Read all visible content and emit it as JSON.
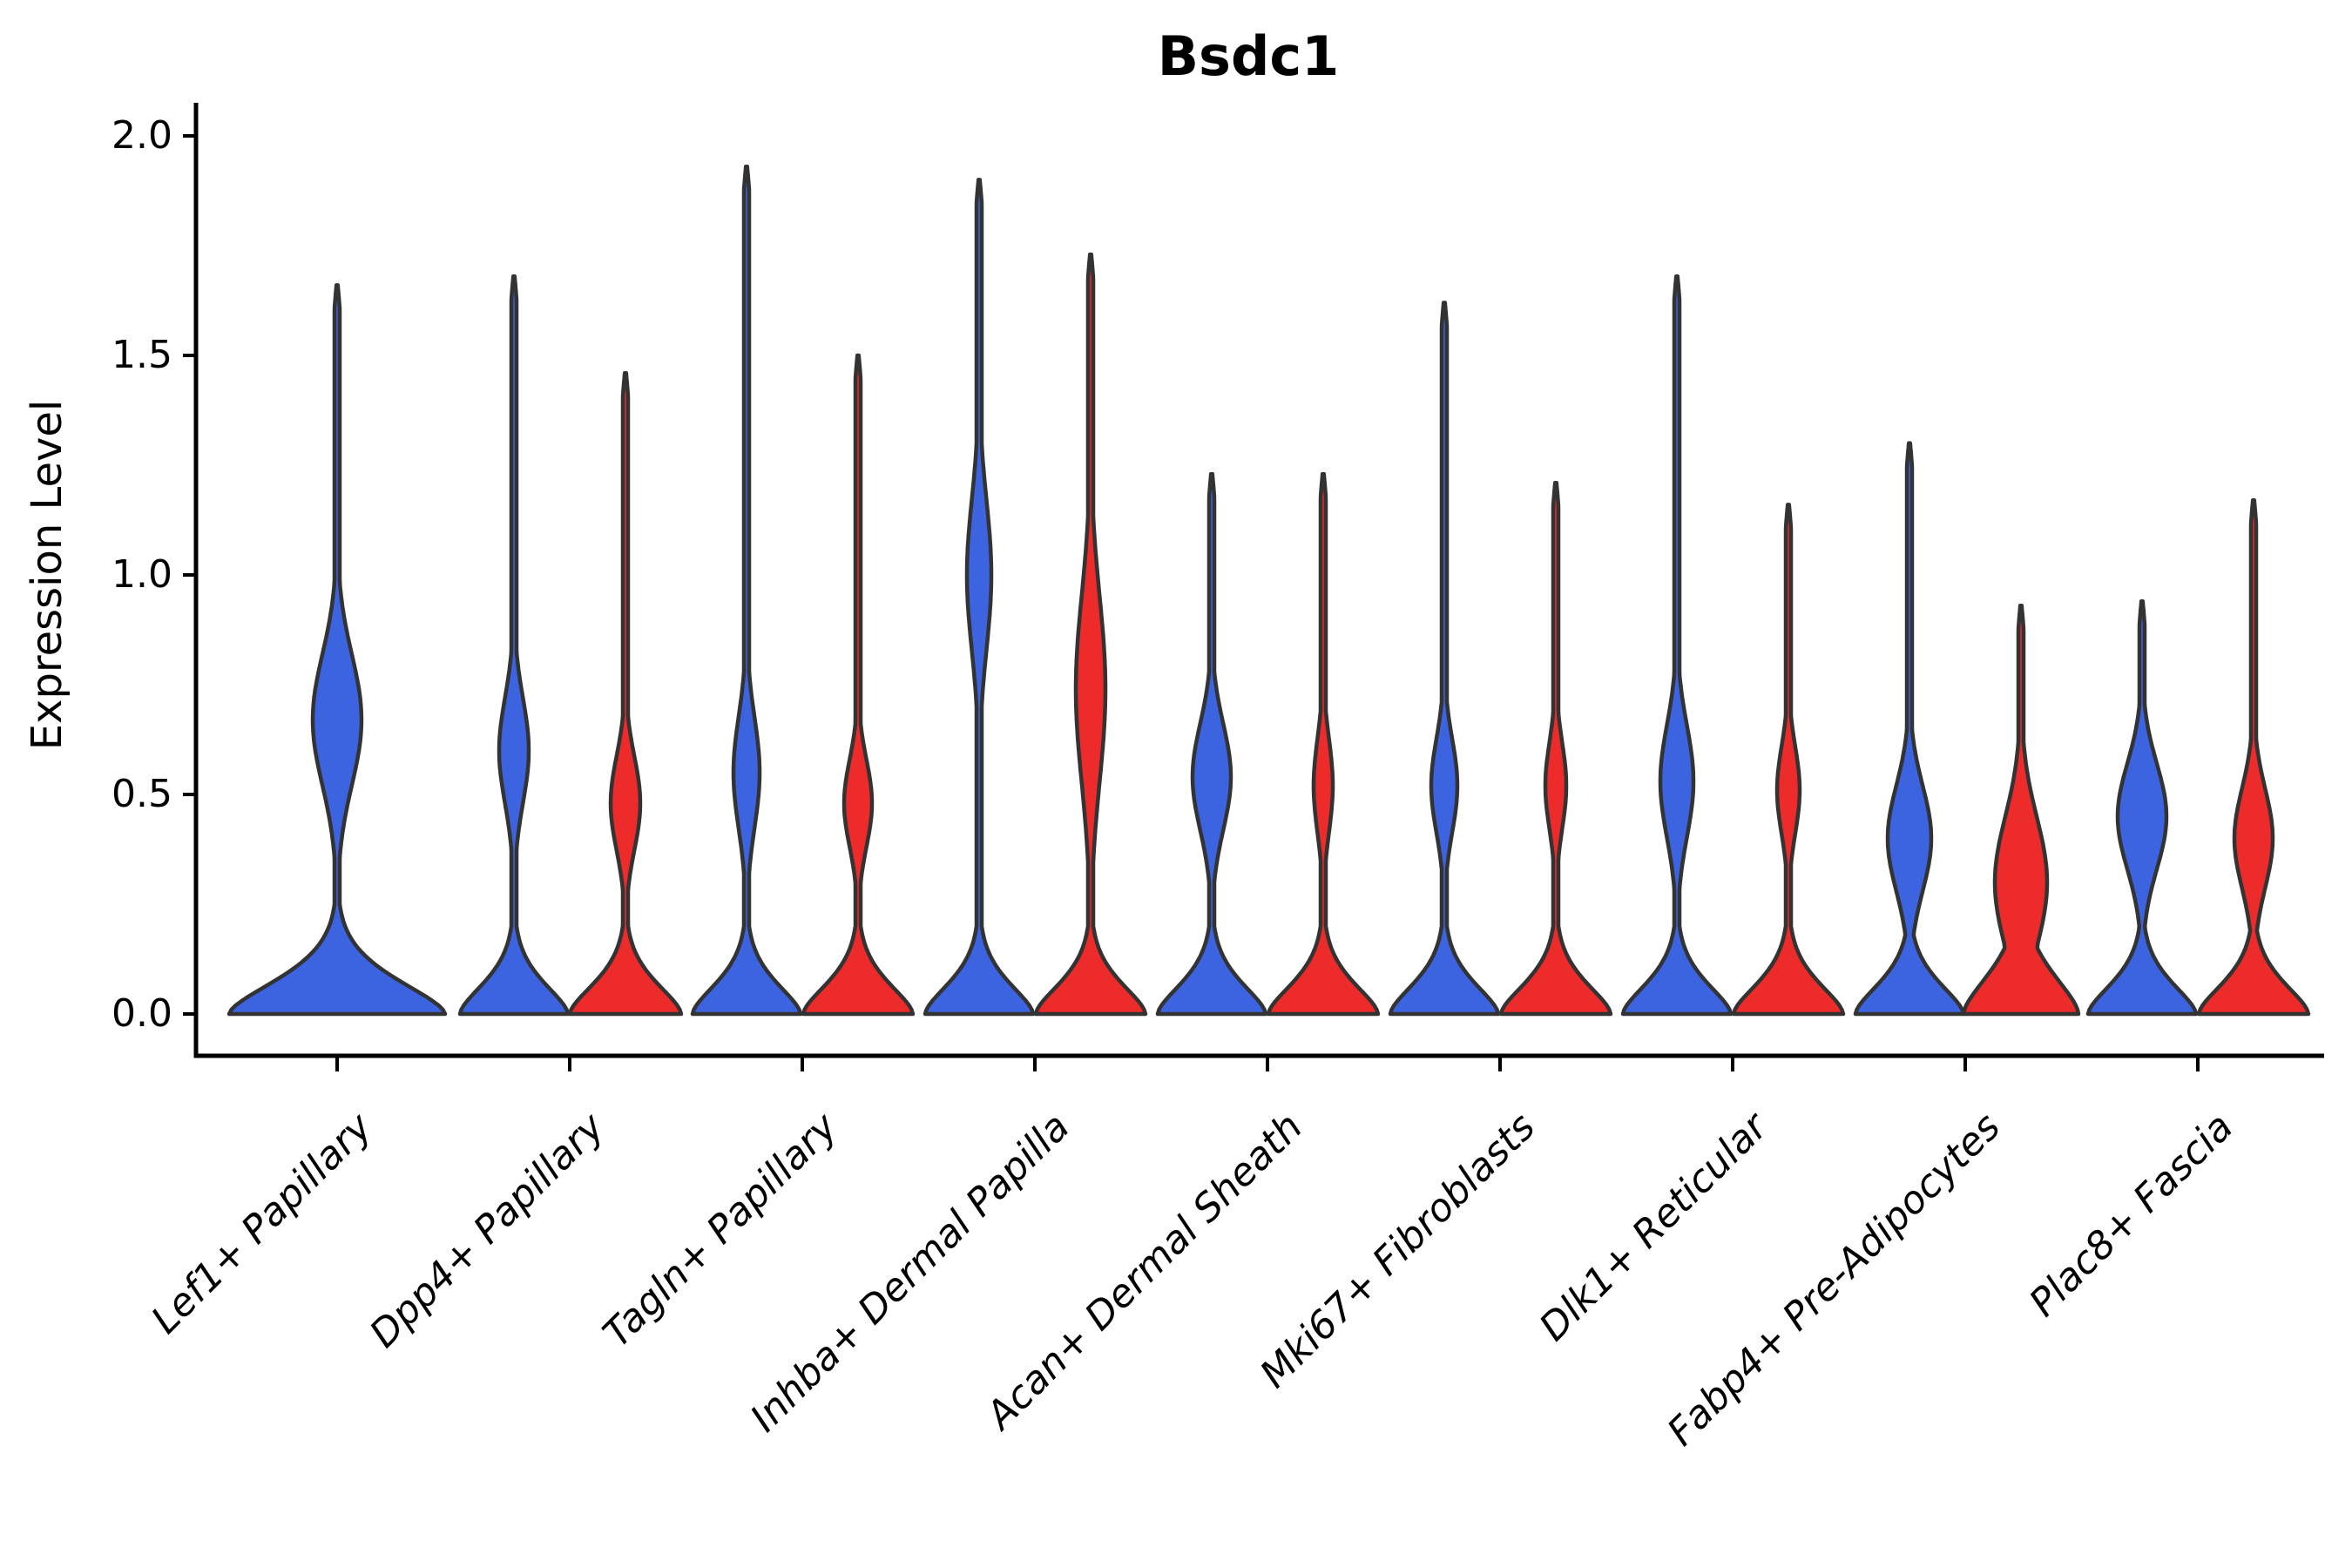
{
  "chart_data": {
    "type": "violin",
    "title": "Bsdc1",
    "ylabel": "Expression Level",
    "xlabel": "",
    "ylim": [
      0.0,
      2.0
    ],
    "yticks": [
      2.0,
      1.5,
      1.0,
      0.5,
      0.0
    ],
    "ytick_labels": [
      "2.0",
      "1.5",
      "1.0",
      "0.5",
      "0.0"
    ],
    "grid": "off",
    "legend_position": "none",
    "categories": [
      "Lef1+ Papillary",
      "Dpp4+ Papillary",
      "Tagln+ Papillary",
      "Inhba+ Dermal Papilla",
      "Acan+ Dermal Sheath",
      "Mki67+ Fibroblasts",
      "Dlk1+ Reticular",
      "Fabp4+ Pre-Adipocytes",
      "Plac8+ Fascia"
    ],
    "series": [
      {
        "name": "blue",
        "color": "#3C64E1"
      },
      {
        "name": "red",
        "color": "#EE2B2B"
      }
    ],
    "outline_color": "#333333",
    "violins": [
      {
        "category": "Lef1+ Papillary",
        "series": "blue",
        "expression_max": 1.66,
        "density_peak": 0.67,
        "shape": {
          "peak_sigma": 0.21,
          "peak_halfwidth": 28,
          "base_halfwidth": 124,
          "base_sigma": 0.11
        }
      },
      {
        "category": "Dpp4+ Papillary",
        "series": "blue",
        "expression_max": 1.68,
        "density_peak": 0.6,
        "shape": {
          "peak_sigma": 0.17,
          "peak_halfwidth": 17,
          "base_halfwidth": 62,
          "base_sigma": 0.1
        }
      },
      {
        "category": "Dpp4+ Papillary",
        "series": "red",
        "expression_max": 1.46,
        "density_peak": 0.48,
        "shape": {
          "peak_sigma": 0.15,
          "peak_halfwidth": 17,
          "base_halfwidth": 64,
          "base_sigma": 0.1
        }
      },
      {
        "category": "Tagln+ Papillary",
        "series": "blue",
        "expression_max": 1.93,
        "density_peak": 0.55,
        "shape": {
          "peak_sigma": 0.18,
          "peak_halfwidth": 15,
          "base_halfwidth": 62,
          "base_sigma": 0.1
        }
      },
      {
        "category": "Tagln+ Papillary",
        "series": "red",
        "expression_max": 1.5,
        "density_peak": 0.48,
        "shape": {
          "peak_sigma": 0.14,
          "peak_halfwidth": 16,
          "base_halfwidth": 63,
          "base_sigma": 0.1
        }
      },
      {
        "category": "Inhba+ Dermal Papilla",
        "series": "blue",
        "expression_max": 1.9,
        "density_peak": 1.0,
        "shape": {
          "peak_sigma": 0.24,
          "peak_halfwidth": 14,
          "base_halfwidth": 62,
          "base_sigma": 0.1
        }
      },
      {
        "category": "Inhba+ Dermal Papilla",
        "series": "red",
        "expression_max": 1.73,
        "density_peak": 0.74,
        "shape": {
          "peak_sigma": 0.3,
          "peak_halfwidth": 17,
          "base_halfwidth": 63,
          "base_sigma": 0.1
        }
      },
      {
        "category": "Acan+ Dermal Sheath",
        "series": "blue",
        "expression_max": 1.23,
        "density_peak": 0.54,
        "shape": {
          "peak_sigma": 0.17,
          "peak_halfwidth": 22,
          "base_halfwidth": 62,
          "base_sigma": 0.1
        }
      },
      {
        "category": "Acan+ Dermal Sheath",
        "series": "red",
        "expression_max": 1.23,
        "density_peak": 0.52,
        "shape": {
          "peak_sigma": 0.15,
          "peak_halfwidth": 11,
          "base_halfwidth": 63,
          "base_sigma": 0.1
        }
      },
      {
        "category": "Mki67+ Fibroblasts",
        "series": "blue",
        "expression_max": 1.62,
        "density_peak": 0.52,
        "shape": {
          "peak_sigma": 0.15,
          "peak_halfwidth": 15,
          "base_halfwidth": 62,
          "base_sigma": 0.1
        }
      },
      {
        "category": "Mki67+ Fibroblasts",
        "series": "red",
        "expression_max": 1.21,
        "density_peak": 0.52,
        "shape": {
          "peak_sigma": 0.14,
          "peak_halfwidth": 12,
          "base_halfwidth": 63,
          "base_sigma": 0.1
        }
      },
      {
        "category": "Dlk1+ Reticular",
        "series": "blue",
        "expression_max": 1.68,
        "density_peak": 0.53,
        "shape": {
          "peak_sigma": 0.18,
          "peak_halfwidth": 19,
          "base_halfwidth": 62,
          "base_sigma": 0.1
        }
      },
      {
        "category": "Dlk1+ Reticular",
        "series": "red",
        "expression_max": 1.16,
        "density_peak": 0.51,
        "shape": {
          "peak_sigma": 0.14,
          "peak_halfwidth": 13,
          "base_halfwidth": 63,
          "base_sigma": 0.1
        }
      },
      {
        "category": "Fabp4+ Pre-Adipocytes",
        "series": "blue",
        "expression_max": 1.3,
        "density_peak": 0.4,
        "shape": {
          "peak_sigma": 0.17,
          "peak_halfwidth": 25,
          "base_halfwidth": 62,
          "base_sigma": 0.1
        }
      },
      {
        "category": "Fabp4+ Pre-Adipocytes",
        "series": "red",
        "expression_max": 0.93,
        "density_peak": 0.3,
        "shape": {
          "peak_sigma": 0.21,
          "peak_halfwidth": 30,
          "base_halfwidth": 66,
          "base_sigma": 0.13
        }
      },
      {
        "category": "Plac8+ Fascia",
        "series": "blue",
        "expression_max": 0.94,
        "density_peak": 0.45,
        "shape": {
          "peak_sigma": 0.17,
          "peak_halfwidth": 28,
          "base_halfwidth": 62,
          "base_sigma": 0.1
        }
      },
      {
        "category": "Plac8+ Fascia",
        "series": "red",
        "expression_max": 1.17,
        "density_peak": 0.4,
        "shape": {
          "peak_sigma": 0.16,
          "peak_halfwidth": 22,
          "base_halfwidth": 63,
          "base_sigma": 0.1
        }
      }
    ]
  }
}
